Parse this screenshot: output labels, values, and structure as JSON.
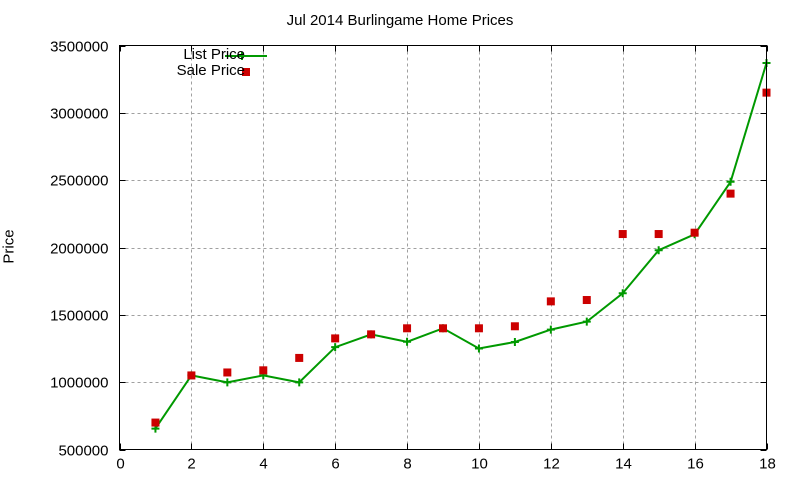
{
  "chart_data": {
    "type": "line",
    "title": "Jul 2014 Burlingame Home Prices",
    "xlabel": "",
    "ylabel": "Price",
    "xlim": [
      0,
      18
    ],
    "ylim": [
      500000,
      3500000
    ],
    "xticks": [
      0,
      2,
      4,
      6,
      8,
      10,
      12,
      14,
      16,
      18
    ],
    "yticks": [
      500000,
      1000000,
      1500000,
      2000000,
      2500000,
      3000000,
      3500000
    ],
    "grid": true,
    "legend_position": "top-left",
    "x": [
      1,
      2,
      3,
      4,
      5,
      6,
      7,
      8,
      9,
      10,
      11,
      12,
      13,
      14,
      15,
      16,
      17,
      18
    ],
    "series": [
      {
        "name": "List Price",
        "style": "line+cross",
        "color": "#009900",
        "values": [
          655000,
          1050000,
          998000,
          1050000,
          998000,
          1260000,
          1355000,
          1300000,
          1400000,
          1250000,
          1298000,
          1390000,
          1450000,
          1660000,
          1980000,
          2098000,
          2488000,
          3370000
        ]
      },
      {
        "name": "Sale Price",
        "style": "square-marker",
        "color": "#cc0000",
        "values": [
          700000,
          1050000,
          1072000,
          1088000,
          1180000,
          1325000,
          1355000,
          1400000,
          1400000,
          1400000,
          1415000,
          1600000,
          1610000,
          2100000,
          2100000,
          2110000,
          2400000,
          3150000
        ]
      }
    ]
  },
  "legend": {
    "list_label": "List Price",
    "sale_label": "Sale Price"
  }
}
